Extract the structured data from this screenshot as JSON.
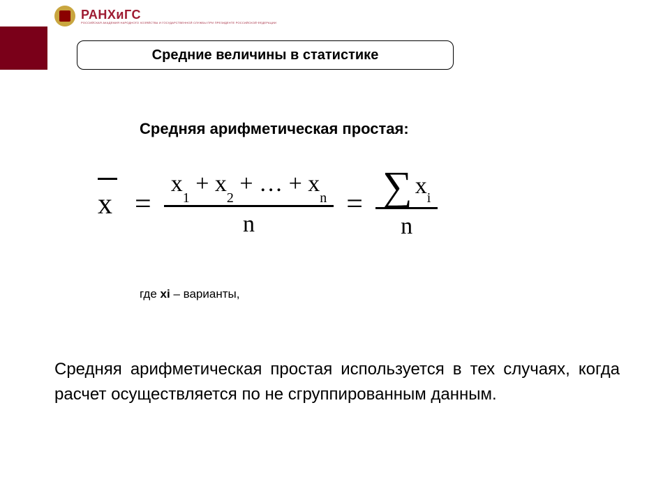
{
  "logo": {
    "main": "РАНХиГС",
    "sub": "РОССИЙСКАЯ АКАДЕМИЯ НАРОДНОГО ХОЗЯЙСТВА И ГОСУДАРСТВЕННОЙ СЛУЖБЫ ПРИ ПРЕЗИДЕНТЕ РОССИЙСКОЙ ФЕДЕРАЦИИ"
  },
  "title": "Средние величины в статистике",
  "subtitle": "Средняя арифметическая простая:",
  "formula": {
    "lhs": "x",
    "numerator_terms": [
      "x",
      "x",
      "…",
      "x"
    ],
    "numerator_subs": [
      "1",
      "2",
      "",
      "n"
    ],
    "denom": "n",
    "sigma": "∑",
    "sigma_term": "x",
    "sigma_sub": "i"
  },
  "where": {
    "prefix": "где ",
    "var": "xi",
    "suffix": " – варианты,"
  },
  "body": "Средняя арифметическая простая используется в тех случаях, когда расчет осуществляется по не сгруппированным данным.",
  "colors": {
    "accent": "#7a0019",
    "brand": "#9e1b32",
    "text": "#000000",
    "background": "#ffffff"
  }
}
